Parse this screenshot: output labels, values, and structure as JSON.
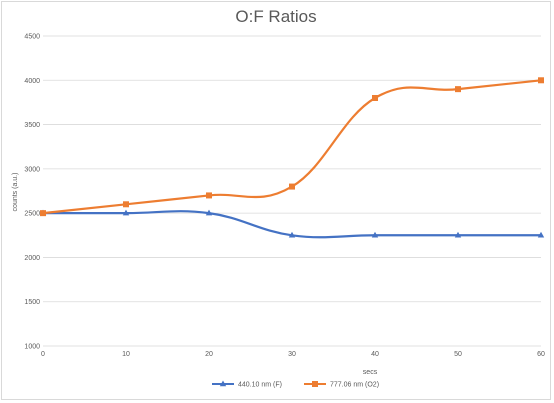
{
  "chart_data": {
    "type": "line",
    "title": "O:F Ratios",
    "xlabel": "secs",
    "ylabel": "counts (a.u.)",
    "x": [
      0,
      10,
      20,
      30,
      40,
      50,
      60
    ],
    "xlim": [
      0,
      60
    ],
    "ylim": [
      1000,
      4500
    ],
    "x_ticks": [
      0,
      10,
      20,
      30,
      40,
      50,
      60
    ],
    "y_ticks": [
      1000,
      1500,
      2000,
      2500,
      3000,
      3500,
      4000,
      4500
    ],
    "grid": true,
    "legend_position": "bottom",
    "smooth_lines": true,
    "series": [
      {
        "name": "440.10 nm (F)",
        "values": [
          2500,
          2500,
          2500,
          2250,
          2250,
          2250,
          2250
        ],
        "color": "#4472c4",
        "marker": "triangle"
      },
      {
        "name": "777.06 nm (O2)",
        "values": [
          2500,
          2600,
          2700,
          2800,
          3800,
          3900,
          4000
        ],
        "color": "#ed7d31",
        "marker": "square"
      }
    ]
  }
}
